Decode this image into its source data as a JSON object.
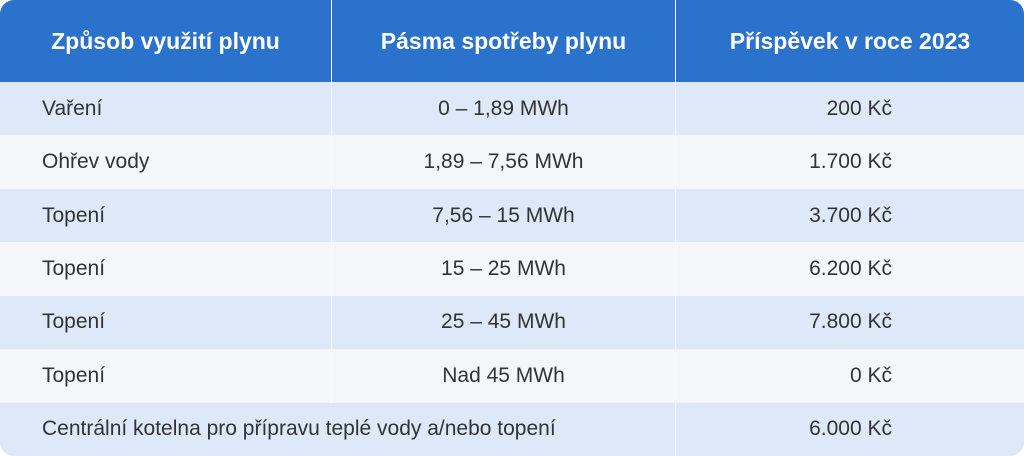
{
  "header": {
    "columns": [
      "Způsob využití plynu",
      "Pásma spotřeby plynu",
      "Příspěvek v roce 2023"
    ]
  },
  "table": {
    "rows": [
      [
        "Vaření",
        "0 – 1,89 MWh",
        "200 Kč"
      ],
      [
        "Ohřev vody",
        "1,89 – 7,56 MWh",
        "1.700 Kč"
      ],
      [
        "Topení",
        "7,56 – 15 MWh",
        "3.700 Kč"
      ],
      [
        "Topení",
        "15 – 25 MWh",
        "6.200 Kč"
      ],
      [
        "Topení",
        "25 – 45 MWh",
        "7.800 Kč"
      ],
      [
        "Topení",
        "Nad 45 MWh",
        "0 Kč"
      ],
      [
        "Centrální kotelna pro přípravu teplé vody a/nebo topení",
        "6.000 Kč"
      ]
    ]
  }
}
